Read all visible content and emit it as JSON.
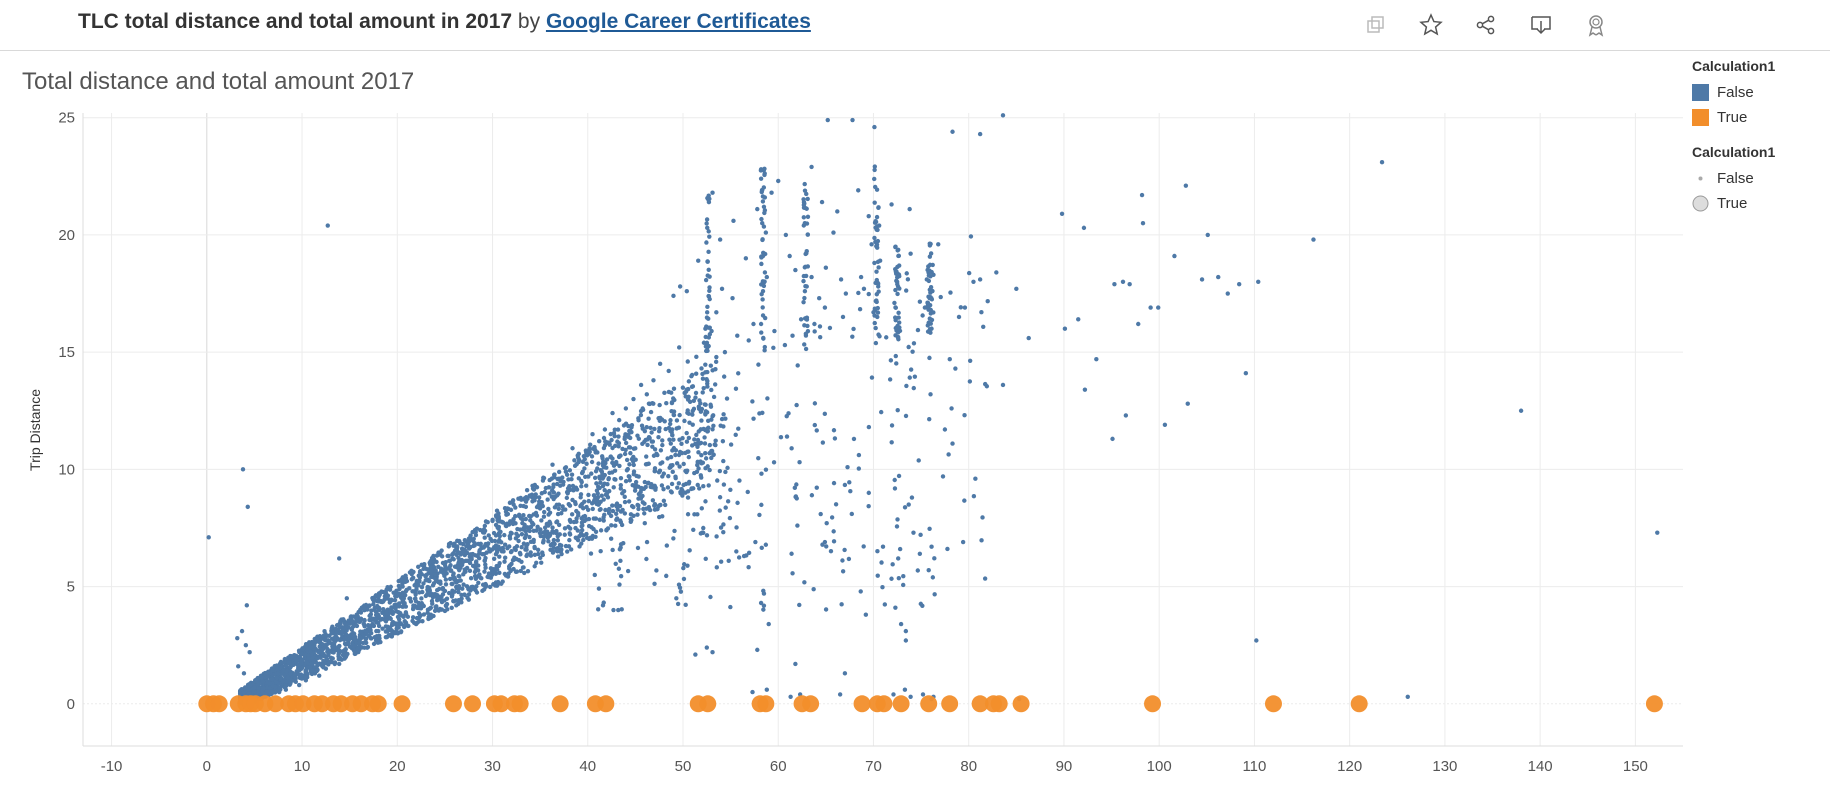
{
  "header": {
    "title": "TLC total distance and total amount in 2017",
    "by": "by",
    "author": "Google Career Certificates",
    "toolbar_icons": [
      "copy-icon",
      "star-icon",
      "share-icon",
      "download-icon",
      "badge-icon"
    ]
  },
  "sheet": {
    "title": "Total distance and total amount 2017"
  },
  "legend": {
    "color": {
      "title": "Calculation1",
      "items": [
        {
          "label": "False",
          "color": "#4e79a7"
        },
        {
          "label": "True",
          "color": "#f28e2b"
        }
      ]
    },
    "size": {
      "title": "Calculation1",
      "items": [
        {
          "label": "False"
        },
        {
          "label": "True"
        }
      ]
    }
  },
  "chart_data": {
    "type": "scatter",
    "title": "Total distance and total amount 2017",
    "xlabel": "",
    "ylabel": "Trip Distance",
    "xlim": [
      -13,
      155
    ],
    "ylim": [
      -1.8,
      25.2
    ],
    "xticks": [
      -10,
      0,
      10,
      20,
      30,
      40,
      50,
      60,
      70,
      80,
      90,
      100,
      110,
      120,
      130,
      140,
      150
    ],
    "yticks": [
      0,
      5,
      10,
      15,
      20,
      25
    ],
    "grid": true,
    "legend_position": "right",
    "series": [
      {
        "name": "False",
        "color": "#4e79a7",
        "marker": "small",
        "points": [
          [
            0.2,
            7.1
          ],
          [
            3.8,
            10.0
          ],
          [
            4.3,
            8.4
          ],
          [
            12.7,
            20.4
          ],
          [
            13.9,
            6.2
          ],
          [
            65.2,
            24.9
          ],
          [
            67.8,
            24.9
          ],
          [
            70.1,
            24.6
          ],
          [
            78.3,
            24.4
          ],
          [
            81.2,
            24.3
          ],
          [
            83.6,
            25.1
          ],
          [
            123.4,
            23.1
          ],
          [
            116.2,
            19.8
          ],
          [
            102.8,
            22.1
          ],
          [
            98.2,
            21.7
          ],
          [
            98.3,
            20.5
          ],
          [
            89.8,
            20.9
          ],
          [
            92.1,
            20.3
          ],
          [
            105.1,
            20.0
          ],
          [
            101.6,
            19.1
          ],
          [
            95.3,
            17.9
          ],
          [
            96.2,
            18.0
          ],
          [
            96.9,
            17.9
          ],
          [
            99.1,
            16.9
          ],
          [
            99.9,
            16.9
          ],
          [
            97.8,
            16.2
          ],
          [
            91.5,
            16.4
          ],
          [
            90.1,
            16.0
          ],
          [
            106.2,
            18.2
          ],
          [
            107.2,
            17.5
          ],
          [
            108.4,
            17.9
          ],
          [
            110.4,
            18.0
          ],
          [
            104.5,
            18.1
          ],
          [
            93.4,
            14.7
          ],
          [
            92.2,
            13.4
          ],
          [
            103.0,
            12.8
          ],
          [
            100.6,
            11.9
          ],
          [
            96.5,
            12.3
          ],
          [
            95.1,
            11.3
          ],
          [
            109.1,
            14.1
          ],
          [
            138.0,
            12.5
          ],
          [
            152.3,
            7.3
          ],
          [
            110.2,
            2.7
          ],
          [
            126.1,
            0.3
          ],
          [
            86.3,
            15.6
          ],
          [
            85.0,
            17.7
          ],
          [
            82.9,
            18.4
          ],
          [
            83.6,
            13.6
          ],
          [
            81.2,
            18.1
          ],
          [
            80.5,
            18.0
          ],
          [
            80.7,
            9.6
          ],
          [
            79.6,
            16.9
          ],
          [
            78.6,
            14.3
          ],
          [
            78.2,
            12.6
          ],
          [
            77.5,
            11.7
          ],
          [
            78.3,
            11.1
          ],
          [
            77.3,
            9.7
          ],
          [
            75.8,
            5.7
          ],
          [
            76.1,
            6.7
          ],
          [
            72.8,
            6.6
          ],
          [
            71.0,
            6.7
          ],
          [
            69.2,
            3.8
          ],
          [
            67.0,
            1.3
          ],
          [
            61.4,
            6.4
          ],
          [
            64.9,
            6.9
          ],
          [
            61.8,
            1.7
          ],
          [
            61.3,
            0.3
          ],
          [
            62.3,
            0.4
          ],
          [
            66.5,
            0.4
          ],
          [
            72.1,
            0.4
          ],
          [
            73.9,
            0.3
          ],
          [
            53.1,
            2.2
          ],
          [
            51.3,
            2.1
          ],
          [
            52.5,
            2.4
          ],
          [
            49.3,
            4.5
          ],
          [
            43.2,
            4.0
          ],
          [
            42.7,
            4.0
          ],
          [
            41.6,
            4.2
          ],
          [
            14.7,
            4.5
          ],
          [
            4.2,
            4.2
          ],
          [
            3.2,
            2.8
          ],
          [
            3.7,
            3.1
          ],
          [
            4.1,
            2.5
          ],
          [
            4.5,
            2.2
          ],
          [
            3.3,
            1.6
          ],
          [
            3.9,
            1.3
          ],
          [
            57.3,
            0.5
          ],
          [
            57.8,
            2.3
          ],
          [
            58.8,
            0.6
          ],
          [
            58.5,
            4.7
          ],
          [
            58.2,
            4.3
          ],
          [
            59.0,
            3.4
          ],
          [
            57.6,
            6.9
          ],
          [
            54.8,
            6.1
          ],
          [
            55.6,
            6.5
          ],
          [
            73.4,
            3.1
          ],
          [
            73.4,
            2.7
          ],
          [
            72.9,
            3.4
          ],
          [
            72.3,
            4.1
          ],
          [
            75.2,
            0.4
          ],
          [
            76.1,
            0.2
          ],
          [
            76.3,
            0.3
          ],
          [
            85.3,
            0.2
          ],
          [
            73.3,
            0.6
          ],
          [
            74.2,
            7.3
          ],
          [
            73.7,
            8.5
          ],
          [
            59.3,
            21.8
          ],
          [
            57.8,
            21.1
          ],
          [
            60.0,
            22.3
          ],
          [
            62.7,
            21.4
          ],
          [
            63.5,
            22.9
          ],
          [
            64.6,
            21.4
          ],
          [
            66.2,
            21.0
          ],
          [
            68.4,
            21.9
          ],
          [
            69.5,
            20.8
          ],
          [
            71.9,
            21.3
          ],
          [
            73.8,
            21.1
          ],
          [
            56.6,
            19.0
          ],
          [
            55.3,
            20.6
          ],
          [
            53.9,
            19.8
          ],
          [
            53.1,
            21.8
          ],
          [
            49.7,
            17.8
          ],
          [
            49.0,
            17.4
          ],
          [
            50.4,
            17.6
          ],
          [
            51.6,
            18.9
          ],
          [
            53.5,
            16.7
          ],
          [
            54.1,
            17.7
          ],
          [
            55.2,
            17.3
          ],
          [
            70.2,
            19.7
          ],
          [
            70.7,
            18.9
          ],
          [
            70.5,
            17.8
          ],
          [
            70.3,
            17.2
          ],
          [
            70.0,
            16.7
          ],
          [
            69.8,
            19.6
          ],
          [
            70.4,
            16.5
          ],
          [
            70.6,
            20.4
          ],
          [
            58.4,
            19.1
          ],
          [
            58.4,
            17.6
          ],
          [
            58.6,
            18.4
          ],
          [
            58.2,
            16.2
          ],
          [
            58.8,
            18.2
          ],
          [
            58.7,
            20.1
          ],
          [
            58.5,
            21.2
          ],
          [
            58.2,
            22.8
          ],
          [
            69.0,
            17.7
          ],
          [
            68.7,
            18.2
          ],
          [
            75.6,
            18.1
          ],
          [
            75.4,
            16.9
          ],
          [
            76.3,
            18.3
          ],
          [
            75.9,
            17.3
          ],
          [
            76.8,
            19.6
          ],
          [
            73.9,
            19.2
          ],
          [
            72.5,
            17.9
          ],
          [
            72.2,
            17.1
          ],
          [
            67.1,
            17.5
          ],
          [
            66.6,
            18.1
          ],
          [
            65.0,
            18.6
          ],
          [
            64.3,
            17.3
          ],
          [
            63.5,
            18.2
          ],
          [
            62.8,
            17.6
          ],
          [
            61.8,
            18.5
          ],
          [
            61.2,
            19.1
          ],
          [
            60.8,
            20.0
          ],
          [
            65.8,
            20.1
          ],
          [
            66.8,
            16.5
          ],
          [
            64.9,
            16.9
          ],
          [
            63.8,
            16.2
          ],
          [
            62.4,
            16.4
          ],
          [
            61.5,
            15.7
          ],
          [
            60.7,
            15.3
          ],
          [
            59.6,
            15.9
          ],
          [
            57.4,
            16.2
          ],
          [
            56.9,
            15.5
          ],
          [
            55.7,
            15.7
          ],
          [
            54.4,
            15.0
          ],
          [
            53.0,
            15.9
          ],
          [
            52.2,
            15.4
          ],
          [
            51.4,
            14.8
          ],
          [
            50.5,
            14.6
          ],
          [
            49.6,
            15.2
          ],
          [
            48.5,
            14.2
          ],
          [
            47.6,
            14.5
          ],
          [
            46.9,
            13.8
          ],
          [
            46.2,
            13.2
          ],
          [
            45.6,
            13.6
          ],
          [
            44.8,
            13.0
          ],
          [
            44.0,
            12.6
          ],
          [
            43.3,
            12.1
          ],
          [
            42.6,
            12.4
          ],
          [
            41.8,
            11.7
          ],
          [
            41.2,
            11.2
          ],
          [
            40.5,
            11.5
          ],
          [
            39.8,
            10.8
          ],
          [
            39.1,
            10.4
          ],
          [
            38.4,
            10.9
          ],
          [
            37.7,
            9.9
          ],
          [
            37.0,
            9.6
          ],
          [
            36.3,
            10.2
          ],
          [
            35.6,
            9.2
          ],
          [
            34.9,
            8.8
          ],
          [
            34.2,
            9.3
          ],
          [
            33.5,
            8.4
          ],
          [
            32.8,
            8.0
          ],
          [
            32.1,
            8.6
          ],
          [
            31.4,
            7.6
          ],
          [
            30.7,
            7.2
          ],
          [
            30.0,
            7.8
          ],
          [
            29.3,
            6.8
          ],
          [
            28.6,
            6.4
          ],
          [
            27.9,
            7.0
          ],
          [
            27.2,
            6.1
          ],
          [
            26.5,
            5.7
          ],
          [
            25.8,
            6.2
          ],
          [
            25.1,
            5.3
          ],
          [
            24.4,
            4.9
          ],
          [
            23.7,
            5.5
          ],
          [
            23.0,
            4.6
          ],
          [
            22.3,
            4.2
          ],
          [
            21.6,
            4.8
          ],
          [
            20.9,
            3.9
          ],
          [
            20.2,
            3.6
          ],
          [
            19.5,
            4.1
          ],
          [
            18.8,
            3.3
          ],
          [
            18.1,
            2.9
          ],
          [
            17.4,
            3.4
          ],
          [
            16.7,
            2.6
          ],
          [
            16.0,
            2.3
          ],
          [
            15.3,
            2.8
          ],
          [
            14.6,
            2.0
          ],
          [
            13.9,
            1.7
          ],
          [
            13.2,
            2.2
          ],
          [
            12.5,
            1.5
          ],
          [
            11.8,
            1.2
          ],
          [
            11.1,
            1.6
          ],
          [
            10.4,
            1.0
          ],
          [
            9.7,
            0.8
          ],
          [
            9.0,
            1.1
          ],
          [
            8.3,
            0.6
          ],
          [
            7.6,
            0.5
          ],
          [
            6.9,
            0.7
          ],
          [
            6.2,
            0.4
          ],
          [
            5.5,
            0.3
          ],
          [
            4.8,
            0.3
          ],
          [
            4.1,
            0.2
          ]
        ]
      },
      {
        "name": "True",
        "color": "#f28e2b",
        "marker": "large",
        "points": [
          [
            0,
            0
          ],
          [
            0.7,
            0
          ],
          [
            1.3,
            0
          ],
          [
            3.3,
            0
          ],
          [
            4.1,
            0
          ],
          [
            4.6,
            0
          ],
          [
            5.1,
            0
          ],
          [
            6.1,
            0
          ],
          [
            7.2,
            0
          ],
          [
            8.6,
            0
          ],
          [
            9.3,
            0
          ],
          [
            10.1,
            0
          ],
          [
            11.3,
            0
          ],
          [
            12.1,
            0
          ],
          [
            13.3,
            0
          ],
          [
            14.1,
            0
          ],
          [
            15.3,
            0
          ],
          [
            16.2,
            0
          ],
          [
            17.4,
            0
          ],
          [
            18.0,
            0
          ],
          [
            20.5,
            0
          ],
          [
            25.9,
            0
          ],
          [
            27.9,
            0
          ],
          [
            30.2,
            0
          ],
          [
            30.9,
            0
          ],
          [
            32.3,
            0
          ],
          [
            32.9,
            0
          ],
          [
            37.1,
            0
          ],
          [
            40.8,
            0
          ],
          [
            41.9,
            0
          ],
          [
            51.6,
            0
          ],
          [
            52.6,
            0
          ],
          [
            58.1,
            0
          ],
          [
            58.7,
            0
          ],
          [
            62.5,
            0
          ],
          [
            63.4,
            0
          ],
          [
            68.8,
            0
          ],
          [
            70.4,
            0
          ],
          [
            71.1,
            0
          ],
          [
            72.9,
            0
          ],
          [
            75.8,
            0
          ],
          [
            78.0,
            0
          ],
          [
            81.2,
            0
          ],
          [
            82.6,
            0
          ],
          [
            83.2,
            0
          ],
          [
            85.5,
            0
          ],
          [
            99.3,
            0
          ],
          [
            112.0,
            0
          ],
          [
            121.0,
            0
          ],
          [
            152.0,
            0
          ]
        ]
      }
    ]
  }
}
